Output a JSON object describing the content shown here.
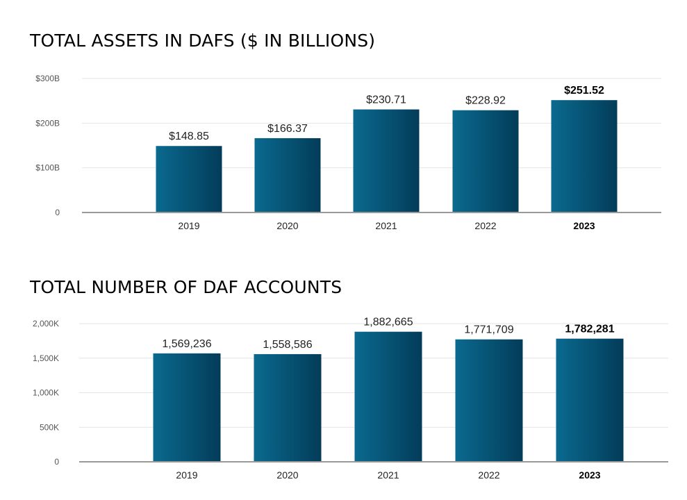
{
  "colors": {
    "bar_light": "#0a6a8f",
    "bar_dark": "#033c59",
    "grid": "#e4e4e4",
    "axis": "#999999"
  },
  "chart_data": [
    {
      "type": "bar",
      "title": "TOTAL ASSETS IN DAFS ($ IN BILLIONS)",
      "categories": [
        "2019",
        "2020",
        "2021",
        "2022",
        "2023"
      ],
      "values": [
        148.85,
        166.37,
        230.71,
        228.92,
        251.52
      ],
      "data_labels": [
        "$148.85",
        "$166.37",
        "$230.71",
        "$228.92",
        "$251.52"
      ],
      "highlight": "2023",
      "ylim": [
        0,
        300
      ],
      "yticks": [
        0,
        100,
        200,
        300
      ],
      "ytick_labels": [
        "0",
        "$100B",
        "$200B",
        "$300B"
      ],
      "grid": true,
      "legend": "none"
    },
    {
      "type": "bar",
      "title": "TOTAL NUMBER OF DAF ACCOUNTS",
      "categories": [
        "2019",
        "2020",
        "2021",
        "2022",
        "2023"
      ],
      "values": [
        1569236,
        1558586,
        1882665,
        1771709,
        1782281
      ],
      "data_labels": [
        "1,569,236",
        "1,558,586",
        "1,882,665",
        "1,771,709",
        "1,782,281"
      ],
      "highlight": "2023",
      "ylim": [
        0,
        2000000
      ],
      "yticks": [
        0,
        500000,
        1000000,
        1500000,
        2000000
      ],
      "ytick_labels": [
        "0",
        "500K",
        "1,000K",
        "1,500K",
        "2,000K"
      ],
      "grid": true,
      "legend": "none"
    }
  ]
}
